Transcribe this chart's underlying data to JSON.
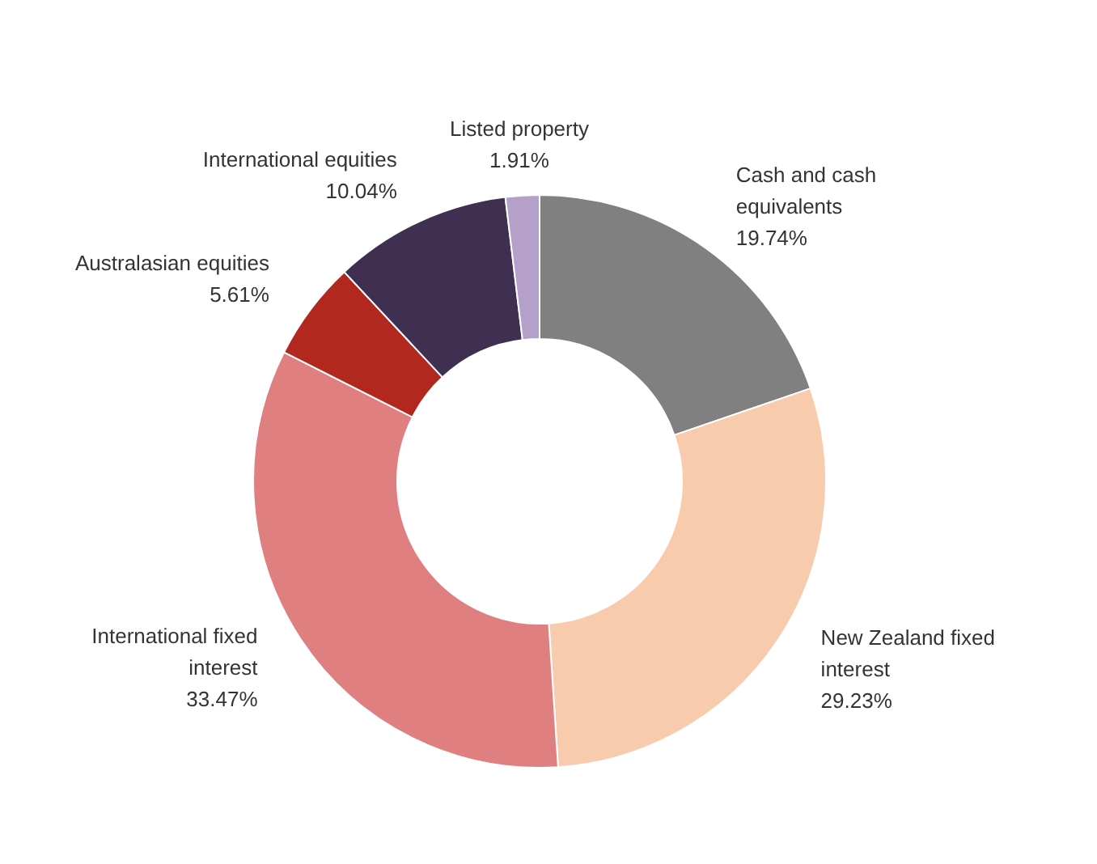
{
  "chart_data": {
    "type": "donut",
    "categories": [
      "Cash and cash equivalents",
      "New Zealand fixed interest",
      "International fixed interest",
      "Australasian equities",
      "International equities",
      "Listed property"
    ],
    "values": [
      19.74,
      29.23,
      33.47,
      5.61,
      10.04,
      1.91
    ],
    "value_labels": [
      "19.74%",
      "29.23%",
      "33.47%",
      "5.61%",
      "10.04%",
      "1.91%"
    ],
    "colors": [
      "#808080",
      "#f8cbad",
      "#e07f80",
      "#b2271e",
      "#3f2f50",
      "#b4a0c8"
    ]
  }
}
